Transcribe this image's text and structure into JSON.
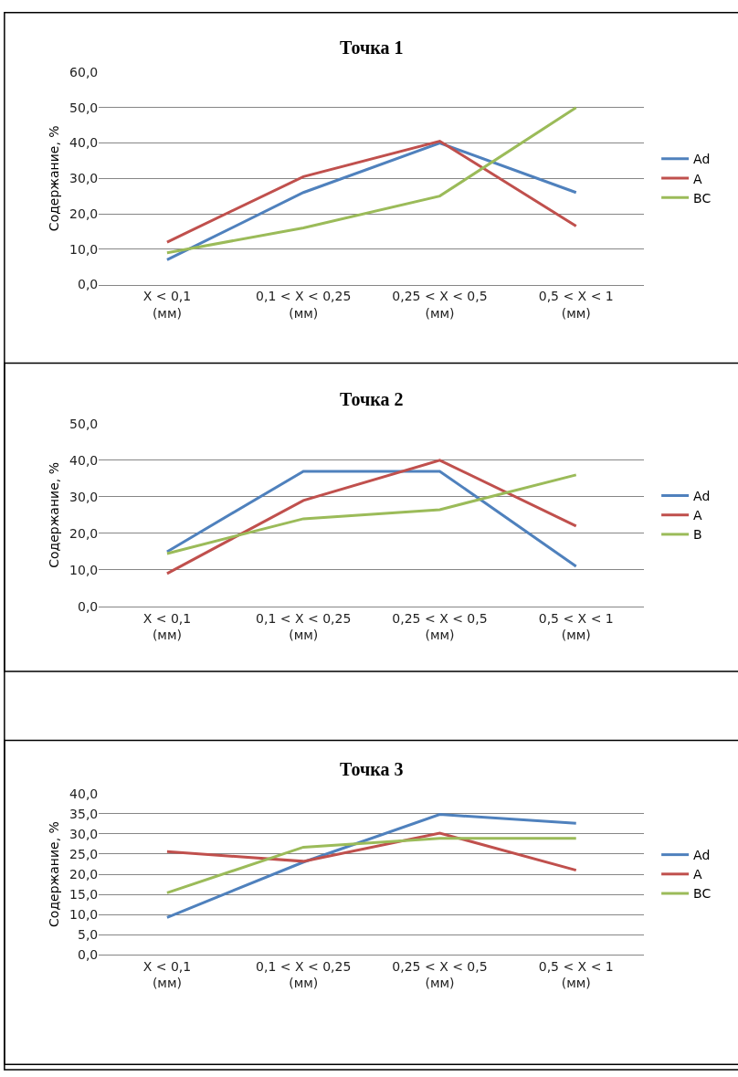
{
  "chart_data": [
    {
      "type": "line",
      "title": "Точка 1",
      "ylabel": "Содержание, %",
      "categories": [
        "X < 0,1\n(мм)",
        "0,1 < X < 0,25\n(мм)",
        "0,25 < X < 0,5\n(мм)",
        "0,5 < X < 1\n(мм)"
      ],
      "ylim": [
        0,
        60
      ],
      "yticks": [
        {
          "value": 0,
          "label": "0,0"
        },
        {
          "value": 10,
          "label": "10,0"
        },
        {
          "value": 20,
          "label": "20,0"
        },
        {
          "value": 30,
          "label": "30,0"
        },
        {
          "value": 40,
          "label": "40,0"
        },
        {
          "value": 50,
          "label": "50,0"
        },
        {
          "value": 60,
          "label": "60,0"
        }
      ],
      "grid": "y",
      "legend": "right",
      "marker": "none",
      "line_style": "solid",
      "series": [
        {
          "name": "Ad",
          "color": "#4f81bd",
          "values": [
            7,
            26,
            40,
            26
          ]
        },
        {
          "name": "A",
          "color": "#c0504d",
          "values": [
            12,
            30.5,
            40.5,
            16.5
          ]
        },
        {
          "name": "BC",
          "color": "#9bbb59",
          "values": [
            9,
            16,
            25,
            50
          ]
        }
      ]
    },
    {
      "type": "line",
      "title": "Точка 2",
      "ylabel": "Содержание, %",
      "categories": [
        "X < 0,1\n(мм)",
        "0,1 < X < 0,25\n(мм)",
        "0,25 < X < 0,5\n(мм)",
        "0,5 < X < 1\n(мм)"
      ],
      "ylim": [
        0,
        50
      ],
      "yticks": [
        {
          "value": 0,
          "label": "0,0"
        },
        {
          "value": 10,
          "label": "10,0"
        },
        {
          "value": 20,
          "label": "20,0"
        },
        {
          "value": 30,
          "label": "30,0"
        },
        {
          "value": 40,
          "label": "40,0"
        },
        {
          "value": 50,
          "label": "50,0"
        }
      ],
      "grid": "y",
      "legend": "right",
      "marker": "none",
      "line_style": "solid",
      "series": [
        {
          "name": "Ad",
          "color": "#4f81bd",
          "values": [
            15,
            37,
            37,
            11
          ]
        },
        {
          "name": "A",
          "color": "#c0504d",
          "values": [
            9,
            29,
            40,
            22
          ]
        },
        {
          "name": "B",
          "color": "#9bbb59",
          "values": [
            14.5,
            24,
            26.5,
            36
          ]
        }
      ]
    },
    {
      "type": "line",
      "title": "Точка 3",
      "ylabel": "Содержание, %",
      "categories": [
        "X < 0,1\n(мм)",
        "0,1 < X < 0,25\n(мм)",
        "0,25 < X < 0,5\n(мм)",
        "0,5 < X < 1\n(мм)"
      ],
      "ylim": [
        0,
        40
      ],
      "yticks": [
        {
          "value": 0,
          "label": "0,0"
        },
        {
          "value": 5,
          "label": "5,0"
        },
        {
          "value": 10,
          "label": "10,0"
        },
        {
          "value": 15,
          "label": "15,0"
        },
        {
          "value": 20,
          "label": "20,0"
        },
        {
          "value": 25,
          "label": "25,0"
        },
        {
          "value": 30,
          "label": "30,0"
        },
        {
          "value": 35,
          "label": "35,0"
        },
        {
          "value": 40,
          "label": "40,0"
        }
      ],
      "grid": "y",
      "legend": "right",
      "marker": "none",
      "line_style": "solid",
      "series": [
        {
          "name": "Ad",
          "color": "#4f81bd",
          "values": [
            9.3,
            23,
            34.8,
            32.6
          ]
        },
        {
          "name": "A",
          "color": "#c0504d",
          "values": [
            25.6,
            23.2,
            30.2,
            21
          ]
        },
        {
          "name": "BC",
          "color": "#9bbb59",
          "values": [
            15.4,
            26.7,
            28.9,
            28.9
          ]
        }
      ]
    }
  ]
}
